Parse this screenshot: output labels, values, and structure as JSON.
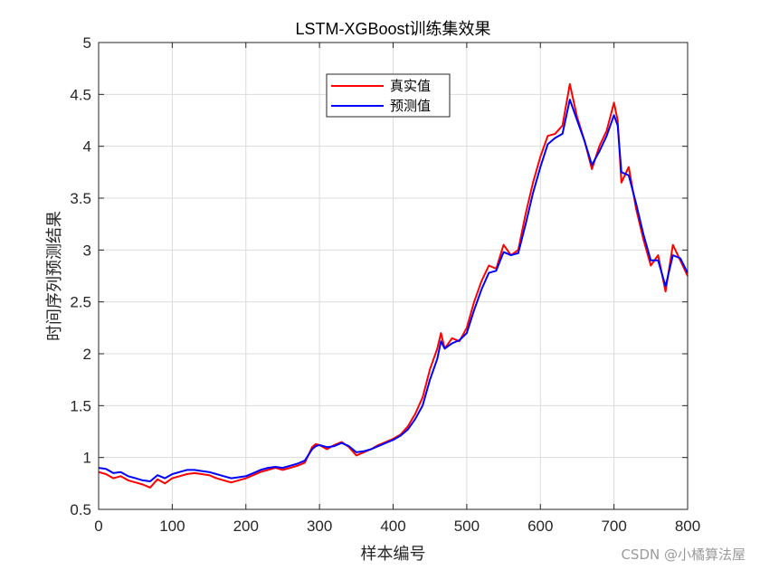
{
  "chart_data": {
    "type": "line",
    "title": "LSTM-XGBoost训练集效果",
    "xlabel": "样本编号",
    "ylabel": "时间序列预测结果",
    "xlim": [
      0,
      800
    ],
    "ylim": [
      0.5,
      5
    ],
    "xticks": [
      0,
      100,
      200,
      300,
      400,
      500,
      600,
      700,
      800
    ],
    "yticks": [
      0.5,
      1,
      1.5,
      2,
      2.5,
      3,
      3.5,
      4,
      4.5,
      5
    ],
    "grid": true,
    "legend_position": "top-center",
    "series": [
      {
        "name": "真实值",
        "color": "#ff0000",
        "x": [
          0,
          10,
          20,
          30,
          40,
          50,
          60,
          70,
          80,
          90,
          100,
          110,
          120,
          130,
          140,
          150,
          160,
          170,
          180,
          190,
          200,
          210,
          220,
          230,
          240,
          250,
          260,
          270,
          280,
          290,
          295,
          300,
          310,
          320,
          330,
          340,
          350,
          360,
          370,
          380,
          390,
          400,
          410,
          420,
          430,
          440,
          450,
          460,
          465,
          470,
          480,
          490,
          500,
          510,
          520,
          530,
          540,
          550,
          560,
          570,
          580,
          590,
          600,
          610,
          620,
          630,
          640,
          650,
          660,
          670,
          680,
          690,
          700,
          705,
          710,
          720,
          730,
          740,
          750,
          760,
          770,
          780,
          790,
          800
        ],
        "values": [
          0.86,
          0.84,
          0.8,
          0.82,
          0.78,
          0.76,
          0.74,
          0.71,
          0.79,
          0.75,
          0.8,
          0.82,
          0.84,
          0.85,
          0.84,
          0.83,
          0.8,
          0.78,
          0.76,
          0.78,
          0.8,
          0.83,
          0.86,
          0.88,
          0.9,
          0.88,
          0.9,
          0.92,
          0.95,
          1.1,
          1.13,
          1.12,
          1.08,
          1.12,
          1.15,
          1.1,
          1.02,
          1.05,
          1.08,
          1.12,
          1.15,
          1.18,
          1.22,
          1.3,
          1.42,
          1.58,
          1.85,
          2.05,
          2.2,
          2.05,
          2.15,
          2.12,
          2.25,
          2.5,
          2.7,
          2.85,
          2.82,
          3.05,
          2.95,
          3.0,
          3.35,
          3.65,
          3.9,
          4.1,
          4.12,
          4.2,
          4.6,
          4.28,
          4.05,
          3.78,
          4.0,
          4.15,
          4.42,
          4.25,
          3.65,
          3.8,
          3.4,
          3.1,
          2.85,
          2.95,
          2.6,
          3.05,
          2.9,
          2.75
        ]
      },
      {
        "name": "预测值",
        "color": "#0000ff",
        "x": [
          0,
          10,
          20,
          30,
          40,
          50,
          60,
          70,
          80,
          90,
          100,
          110,
          120,
          130,
          140,
          150,
          160,
          170,
          180,
          190,
          200,
          210,
          220,
          230,
          240,
          250,
          260,
          270,
          280,
          290,
          295,
          300,
          310,
          320,
          330,
          340,
          350,
          360,
          370,
          380,
          390,
          400,
          410,
          420,
          430,
          440,
          450,
          460,
          465,
          470,
          480,
          490,
          500,
          510,
          520,
          530,
          540,
          550,
          560,
          570,
          580,
          590,
          600,
          610,
          620,
          630,
          640,
          650,
          660,
          670,
          680,
          690,
          700,
          705,
          710,
          720,
          730,
          740,
          750,
          760,
          770,
          780,
          790,
          800
        ],
        "values": [
          0.9,
          0.89,
          0.85,
          0.86,
          0.82,
          0.8,
          0.78,
          0.77,
          0.83,
          0.8,
          0.84,
          0.86,
          0.88,
          0.88,
          0.87,
          0.86,
          0.84,
          0.82,
          0.8,
          0.81,
          0.82,
          0.85,
          0.88,
          0.9,
          0.91,
          0.9,
          0.92,
          0.94,
          0.97,
          1.08,
          1.11,
          1.12,
          1.1,
          1.11,
          1.14,
          1.11,
          1.05,
          1.06,
          1.08,
          1.11,
          1.14,
          1.17,
          1.21,
          1.27,
          1.37,
          1.5,
          1.75,
          1.95,
          2.12,
          2.05,
          2.1,
          2.13,
          2.2,
          2.42,
          2.62,
          2.78,
          2.8,
          2.98,
          2.95,
          2.97,
          3.25,
          3.55,
          3.8,
          4.02,
          4.08,
          4.12,
          4.45,
          4.25,
          4.05,
          3.82,
          3.95,
          4.1,
          4.3,
          4.2,
          3.75,
          3.72,
          3.45,
          3.15,
          2.9,
          2.9,
          2.65,
          2.95,
          2.92,
          2.78
        ]
      }
    ]
  },
  "watermark": "CSDN @小橘算法屋"
}
